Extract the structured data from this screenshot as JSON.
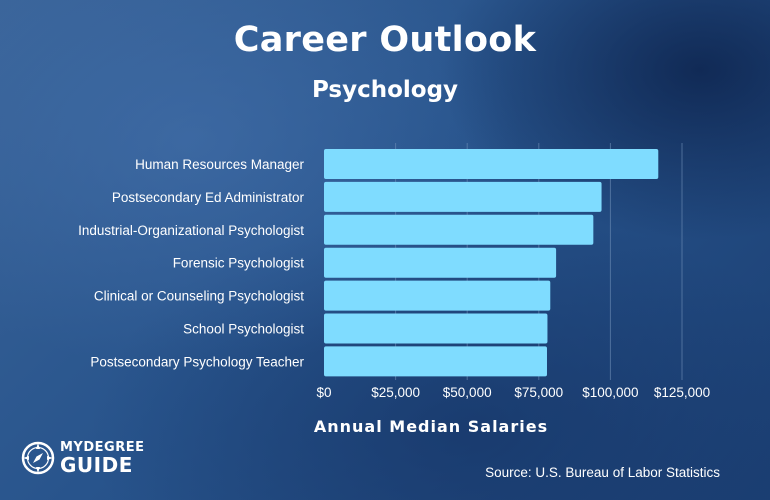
{
  "header": {
    "title": "Career Outlook",
    "subtitle": "Psychology"
  },
  "colors": {
    "bar": "#7fdcff",
    "gridline": "#6f8fb8",
    "text": "#ffffff"
  },
  "chart_data": {
    "type": "bar",
    "orientation": "horizontal",
    "title": "Career Outlook",
    "subtitle": "Psychology",
    "xlabel": "Annual Median Salaries",
    "ylabel": "",
    "categories": [
      "Human Resources Manager",
      "Postsecondary Ed Administrator",
      "Industrial-Organizational Psychologist",
      "Forensic Psychologist",
      "Clinical or Counseling Psychologist",
      "School Psychologist",
      "Postsecondary Psychology Teacher"
    ],
    "values": [
      116720,
      96910,
      94040,
      81040,
      79010,
      78020,
      77860
    ],
    "xlim": [
      0,
      125000
    ],
    "xticks": [
      0,
      25000,
      50000,
      75000,
      100000,
      125000
    ],
    "xtick_labels": [
      "$0",
      "$25,000",
      "$50,000",
      "$75,000",
      "$100,000",
      "$125,000"
    ],
    "grid": "vertical",
    "legend": "none"
  },
  "footer": {
    "logo_top": "MYDEGREE",
    "logo_bottom": "GUIDE",
    "source": "Source: U.S. Bureau of Labor Statistics"
  },
  "icons": {
    "logo": "compass-icon"
  }
}
